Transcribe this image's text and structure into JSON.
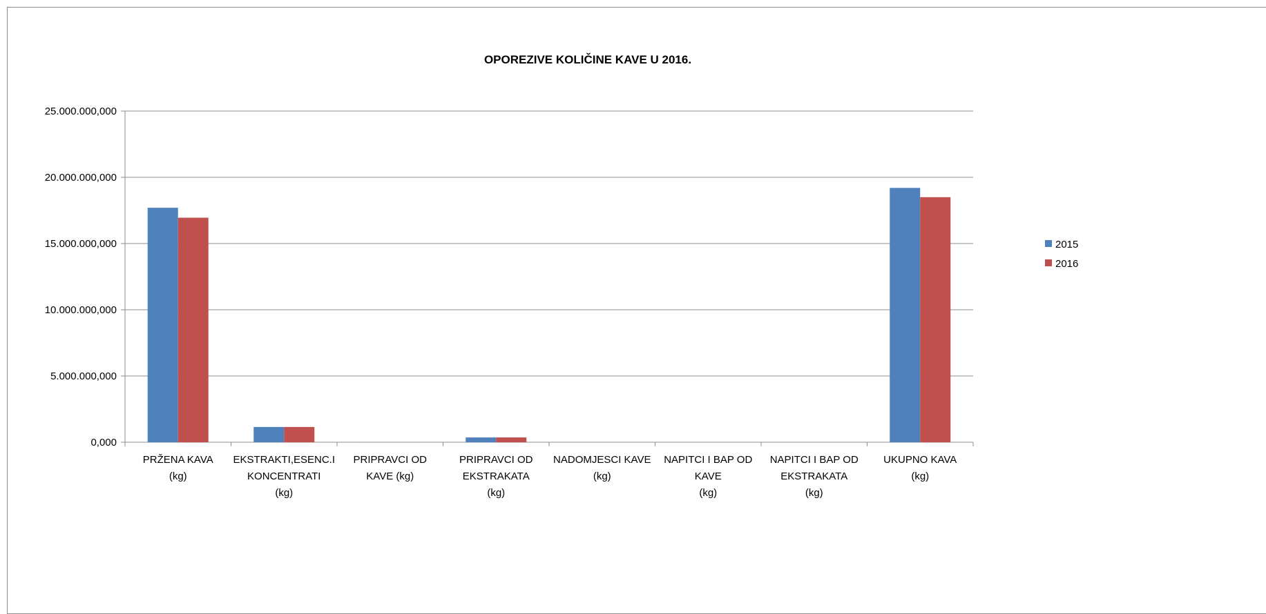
{
  "chart_data": {
    "type": "bar",
    "title": "OPOREZIVE KOLIČINE KAVE U 2016.",
    "xlabel": "",
    "ylabel": "",
    "ylim": [
      0,
      25000000000
    ],
    "yticks": [
      0,
      5000000000,
      10000000000,
      15000000000,
      20000000000,
      25000000000
    ],
    "ytick_labels": [
      "0,000",
      "5.000.000,000",
      "10.000.000,000",
      "15.000.000,000",
      "20.000.000,000",
      "25.000.000,000"
    ],
    "grid": true,
    "legend_position": "right",
    "categories": [
      [
        "PRŽENA KAVA",
        "(kg)"
      ],
      [
        "EKSTRAKTI,ESENC.I",
        "KONCENTRATI",
        "(kg)"
      ],
      [
        "PRIPRAVCI OD",
        "KAVE (kg)"
      ],
      [
        "PRIPRAVCI OD",
        "EKSTRAKATA",
        "(kg)"
      ],
      [
        "NADOMJESCI KAVE",
        "(kg)"
      ],
      [
        "NAPITCI I BAP OD",
        "KAVE",
        "(kg)"
      ],
      [
        "NAPITCI I BAP OD",
        "EKSTRAKATA",
        "(kg)"
      ],
      [
        "UKUPNO KAVA",
        "(kg)"
      ]
    ],
    "series": [
      {
        "name": "2015",
        "color": "#4f81bd",
        "values": [
          17700000000,
          1150000000,
          5000000,
          360000000,
          0,
          0,
          0,
          19200000000
        ]
      },
      {
        "name": "2016",
        "color": "#c0504d",
        "values": [
          16950000000,
          1150000000,
          5000000,
          360000000,
          0,
          0,
          0,
          18500000000
        ]
      }
    ]
  }
}
